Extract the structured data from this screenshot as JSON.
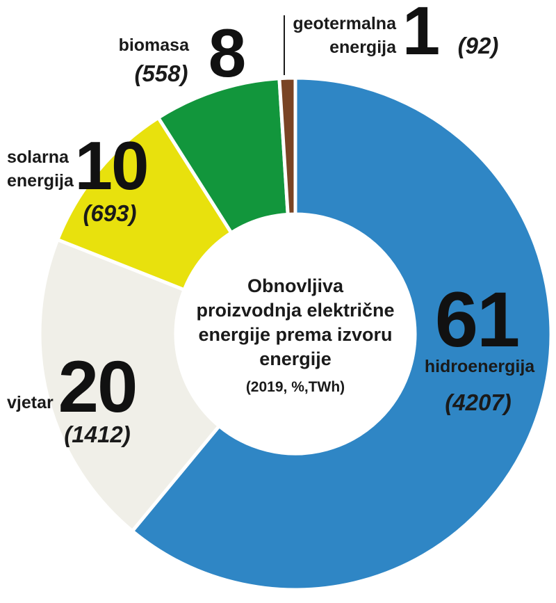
{
  "chart_data": {
    "type": "pie",
    "center_title": [
      "Obnovljiva",
      "proizvodnja električne",
      "energije prema izvoru",
      "energije"
    ],
    "center_subtitle": "(2019, %,TWh)",
    "slices": [
      {
        "name": "hidroenergija",
        "name_lines": [
          "hidroenergija"
        ],
        "percent": 61,
        "percent_label": "61",
        "twh": 4207,
        "twh_label": "(4207)",
        "color": "#2f86c5"
      },
      {
        "name": "vjetar",
        "name_lines": [
          "vjetar"
        ],
        "percent": 20,
        "percent_label": "20",
        "twh": 1412,
        "twh_label": "(1412)",
        "color": "#f0efe8"
      },
      {
        "name": "solarna energija",
        "name_lines": [
          "solarna",
          "energija"
        ],
        "percent": 10,
        "percent_label": "10",
        "twh": 693,
        "twh_label": "(693)",
        "color": "#e8e10d"
      },
      {
        "name": "biomasa",
        "name_lines": [
          "biomasa"
        ],
        "percent": 8,
        "percent_label": "8",
        "twh": 558,
        "twh_label": "(558)",
        "color": "#12963c"
      },
      {
        "name": "geotermalna energija",
        "name_lines": [
          "geotermalna",
          "energija"
        ],
        "percent": 1,
        "percent_label": "1",
        "twh": 92,
        "twh_label": "(92)",
        "color": "#7a4424"
      }
    ]
  }
}
